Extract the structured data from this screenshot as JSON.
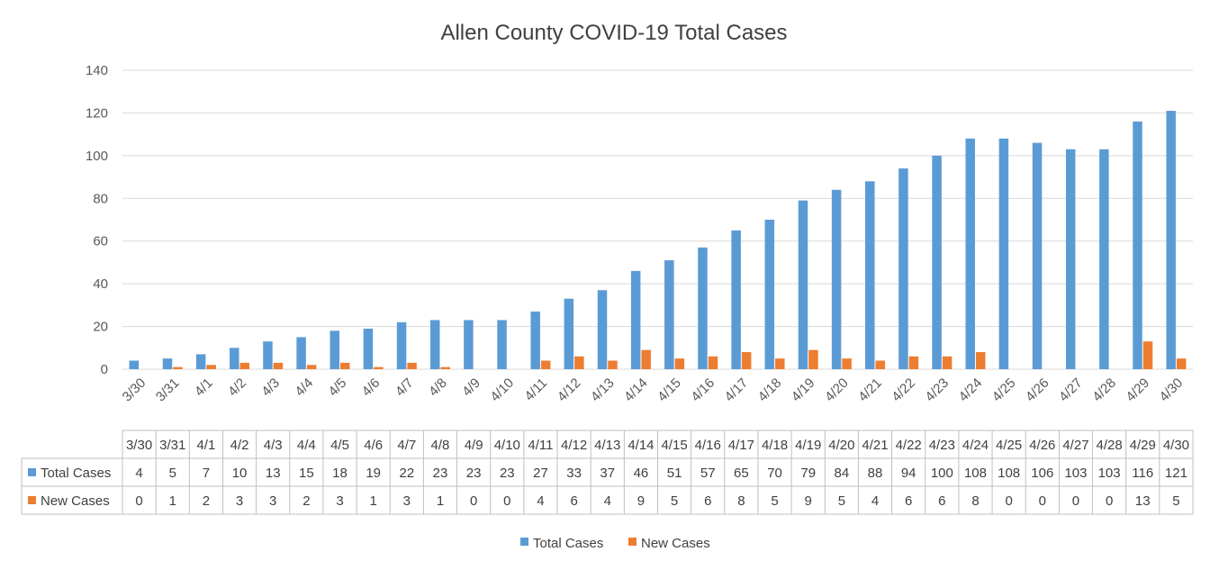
{
  "chart_data": {
    "type": "bar",
    "title": "Allen County COVID-19 Total Cases",
    "xlabel": "",
    "ylabel": "",
    "ylim": [
      0,
      140
    ],
    "yticks": [
      0,
      20,
      40,
      60,
      80,
      100,
      120,
      140
    ],
    "grid": true,
    "legend_position": "bottom",
    "data_table": true,
    "categories": [
      "3/30",
      "3/31",
      "4/1",
      "4/2",
      "4/3",
      "4/4",
      "4/5",
      "4/6",
      "4/7",
      "4/8",
      "4/9",
      "4/10",
      "4/11",
      "4/12",
      "4/13",
      "4/14",
      "4/15",
      "4/16",
      "4/17",
      "4/18",
      "4/19",
      "4/20",
      "4/21",
      "4/22",
      "4/23",
      "4/24",
      "4/25",
      "4/26",
      "4/27",
      "4/28",
      "4/29",
      "4/30"
    ],
    "series": [
      {
        "name": "Total Cases",
        "color": "#5B9BD5",
        "values": [
          4,
          5,
          7,
          10,
          13,
          15,
          18,
          19,
          22,
          23,
          23,
          23,
          27,
          33,
          37,
          46,
          51,
          57,
          65,
          70,
          79,
          84,
          88,
          94,
          100,
          108,
          108,
          106,
          103,
          103,
          116,
          121
        ]
      },
      {
        "name": "New Cases",
        "color": "#ED7D31",
        "values": [
          0,
          1,
          2,
          3,
          3,
          2,
          3,
          1,
          3,
          1,
          0,
          0,
          4,
          6,
          4,
          9,
          5,
          6,
          8,
          5,
          9,
          5,
          4,
          6,
          6,
          8,
          0,
          0,
          0,
          0,
          13,
          5
        ]
      }
    ]
  }
}
